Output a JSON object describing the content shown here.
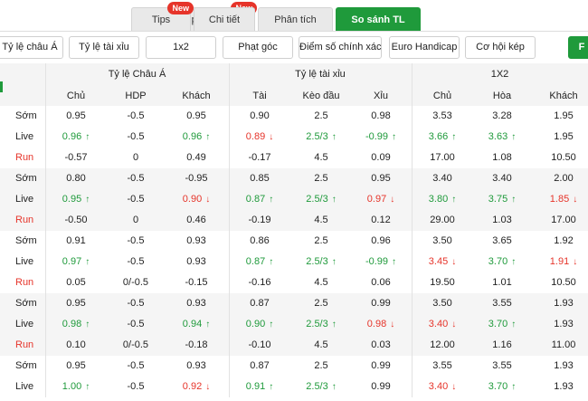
{
  "tabs": [
    {
      "label": "Tips",
      "badge": "New"
    },
    {
      "label": "Chi tiết"
    },
    {
      "label": "Phân tích"
    },
    {
      "label": "So sánh TL"
    }
  ],
  "subbar": {
    "buttons": [
      "Tỷ lệ châu Á",
      "Tỷ lệ tài xỉu",
      "1x2",
      "Phạt góc",
      "Điểm số chính xác",
      "Euro Handicap",
      "Cơ hội kép"
    ],
    "edge_button": "F"
  },
  "groups": [
    "Tỷ lệ Châu Á",
    "Tỷ lệ tài xỉu",
    "1X2"
  ],
  "columns": [
    "Chủ",
    "HDP",
    "Khách",
    "Tài",
    "Kèo đầu",
    "Xỉu",
    "Chủ",
    "Hòa",
    "Khách"
  ],
  "rows": [
    {
      "label": "Sớm",
      "type": "early",
      "cells": [
        [
          "0.95",
          ""
        ],
        [
          "-0.5",
          ""
        ],
        [
          "0.95",
          ""
        ],
        [
          "0.90",
          ""
        ],
        [
          "2.5",
          ""
        ],
        [
          "0.98",
          ""
        ],
        [
          "3.53",
          ""
        ],
        [
          "3.28",
          ""
        ],
        [
          "1.95",
          ""
        ]
      ]
    },
    {
      "label": "Live",
      "type": "live",
      "cells": [
        [
          "0.96",
          "up"
        ],
        [
          "-0.5",
          ""
        ],
        [
          "0.96",
          "up"
        ],
        [
          "0.89",
          "down"
        ],
        [
          "2.5/3",
          "up"
        ],
        [
          "-0.99",
          "up"
        ],
        [
          "3.66",
          "up"
        ],
        [
          "3.63",
          "up"
        ],
        [
          "1.95",
          ""
        ]
      ]
    },
    {
      "label": "Run",
      "type": "run",
      "cells": [
        [
          "-0.57",
          ""
        ],
        [
          "0",
          ""
        ],
        [
          "0.49",
          ""
        ],
        [
          "-0.17",
          ""
        ],
        [
          "4.5",
          ""
        ],
        [
          "0.09",
          ""
        ],
        [
          "17.00",
          ""
        ],
        [
          "1.08",
          ""
        ],
        [
          "10.50",
          ""
        ]
      ]
    },
    {
      "label": "Sớm",
      "type": "early",
      "cells": [
        [
          "0.80",
          ""
        ],
        [
          "-0.5",
          ""
        ],
        [
          "-0.95",
          ""
        ],
        [
          "0.85",
          ""
        ],
        [
          "2.5",
          ""
        ],
        [
          "0.95",
          ""
        ],
        [
          "3.40",
          ""
        ],
        [
          "3.40",
          ""
        ],
        [
          "2.00",
          ""
        ]
      ]
    },
    {
      "label": "Live",
      "type": "live",
      "cells": [
        [
          "0.95",
          "up"
        ],
        [
          "-0.5",
          ""
        ],
        [
          "0.90",
          "down"
        ],
        [
          "0.87",
          "up"
        ],
        [
          "2.5/3",
          "up"
        ],
        [
          "0.97",
          "down"
        ],
        [
          "3.80",
          "up"
        ],
        [
          "3.75",
          "up"
        ],
        [
          "1.85",
          "down"
        ]
      ]
    },
    {
      "label": "Run",
      "type": "run",
      "cells": [
        [
          "-0.50",
          ""
        ],
        [
          "0",
          ""
        ],
        [
          "0.46",
          ""
        ],
        [
          "-0.19",
          ""
        ],
        [
          "4.5",
          ""
        ],
        [
          "0.12",
          ""
        ],
        [
          "29.00",
          ""
        ],
        [
          "1.03",
          ""
        ],
        [
          "17.00",
          ""
        ]
      ]
    },
    {
      "label": "Sớm",
      "type": "early",
      "cells": [
        [
          "0.91",
          ""
        ],
        [
          "-0.5",
          ""
        ],
        [
          "0.93",
          ""
        ],
        [
          "0.86",
          ""
        ],
        [
          "2.5",
          ""
        ],
        [
          "0.96",
          ""
        ],
        [
          "3.50",
          ""
        ],
        [
          "3.65",
          ""
        ],
        [
          "1.92",
          ""
        ]
      ]
    },
    {
      "label": "Live",
      "type": "live",
      "cells": [
        [
          "0.97",
          "up"
        ],
        [
          "-0.5",
          ""
        ],
        [
          "0.93",
          ""
        ],
        [
          "0.87",
          "up"
        ],
        [
          "2.5/3",
          "up"
        ],
        [
          "-0.99",
          "up"
        ],
        [
          "3.45",
          "down"
        ],
        [
          "3.70",
          "up"
        ],
        [
          "1.91",
          "down"
        ]
      ]
    },
    {
      "label": "Run",
      "type": "run",
      "cells": [
        [
          "0.05",
          ""
        ],
        [
          "0/-0.5",
          ""
        ],
        [
          "-0.15",
          ""
        ],
        [
          "-0.16",
          ""
        ],
        [
          "4.5",
          ""
        ],
        [
          "0.06",
          ""
        ],
        [
          "19.50",
          ""
        ],
        [
          "1.01",
          ""
        ],
        [
          "10.50",
          ""
        ]
      ]
    },
    {
      "label": "Sớm",
      "type": "early",
      "cells": [
        [
          "0.95",
          ""
        ],
        [
          "-0.5",
          ""
        ],
        [
          "0.93",
          ""
        ],
        [
          "0.87",
          ""
        ],
        [
          "2.5",
          ""
        ],
        [
          "0.99",
          ""
        ],
        [
          "3.50",
          ""
        ],
        [
          "3.55",
          ""
        ],
        [
          "1.93",
          ""
        ]
      ]
    },
    {
      "label": "Live",
      "type": "live",
      "cells": [
        [
          "0.98",
          "up"
        ],
        [
          "-0.5",
          ""
        ],
        [
          "0.94",
          "up"
        ],
        [
          "0.90",
          "up"
        ],
        [
          "2.5/3",
          "up"
        ],
        [
          "0.98",
          "down"
        ],
        [
          "3.40",
          "down"
        ],
        [
          "3.70",
          "up"
        ],
        [
          "1.93",
          ""
        ]
      ]
    },
    {
      "label": "Run",
      "type": "run",
      "cells": [
        [
          "0.10",
          ""
        ],
        [
          "0/-0.5",
          ""
        ],
        [
          "-0.18",
          ""
        ],
        [
          "-0.10",
          ""
        ],
        [
          "4.5",
          ""
        ],
        [
          "0.03",
          ""
        ],
        [
          "12.00",
          ""
        ],
        [
          "1.16",
          ""
        ],
        [
          "11.00",
          ""
        ]
      ]
    },
    {
      "label": "Sớm",
      "type": "early",
      "cells": [
        [
          "0.95",
          ""
        ],
        [
          "-0.5",
          ""
        ],
        [
          "0.93",
          ""
        ],
        [
          "0.87",
          ""
        ],
        [
          "2.5",
          ""
        ],
        [
          "0.99",
          ""
        ],
        [
          "3.55",
          ""
        ],
        [
          "3.55",
          ""
        ],
        [
          "1.93",
          ""
        ]
      ]
    },
    {
      "label": "Live",
      "type": "live",
      "cells": [
        [
          "1.00",
          "up"
        ],
        [
          "-0.5",
          ""
        ],
        [
          "0.92",
          "down"
        ],
        [
          "0.91",
          "up"
        ],
        [
          "2.5/3",
          "up"
        ],
        [
          "0.99",
          ""
        ],
        [
          "3.40",
          "down"
        ],
        [
          "3.70",
          "up"
        ],
        [
          "1.93",
          ""
        ]
      ]
    }
  ]
}
